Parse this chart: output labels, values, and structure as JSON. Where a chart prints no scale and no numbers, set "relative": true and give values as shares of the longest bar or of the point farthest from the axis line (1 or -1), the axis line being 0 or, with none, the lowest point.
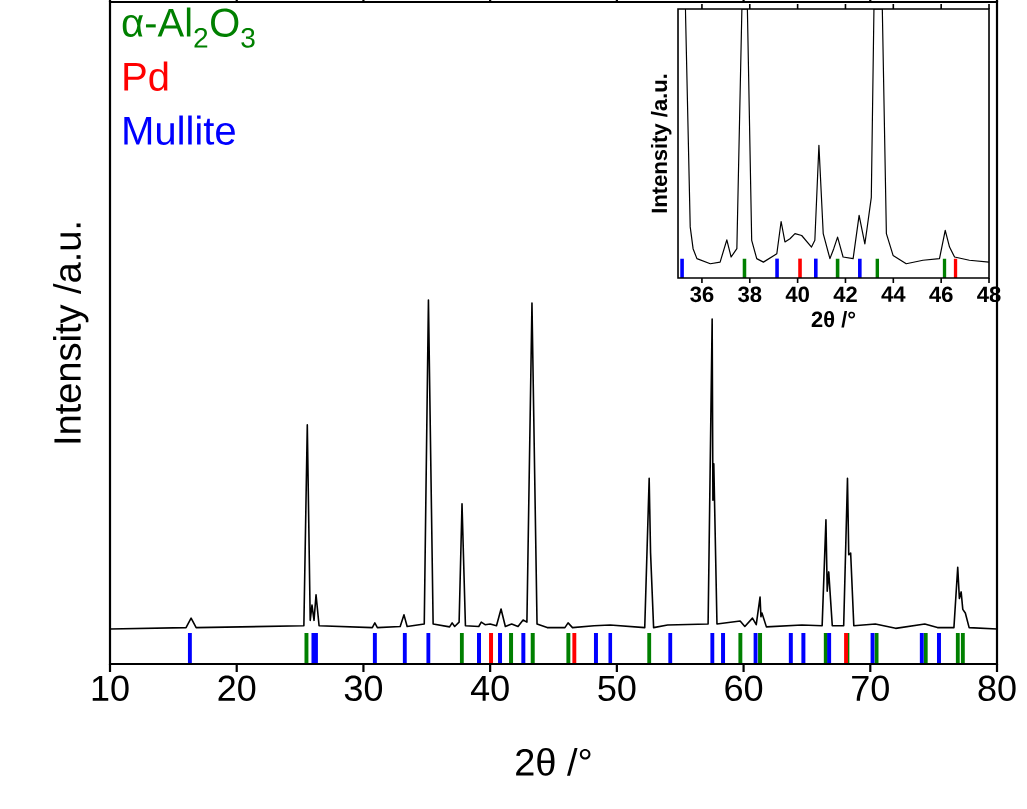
{
  "chart_data": [
    {
      "type": "line",
      "relative": true,
      "xlim": [
        10,
        80
      ],
      "xticks": [
        10,
        20,
        30,
        40,
        50,
        60,
        70,
        80
      ],
      "xlabel": "2θ /°",
      "ylabel": "Intensity /a.u.",
      "legend": "top left",
      "series": [
        {
          "color": "#000000",
          "x": [
            10,
            16.0,
            16.4,
            16.8,
            25.3,
            25.57,
            25.8,
            25.94,
            26.1,
            26.26,
            26.5,
            30.7,
            30.9,
            31.1,
            32.9,
            33.2,
            33.45,
            34.8,
            35.13,
            35.5,
            36.8,
            37.0,
            37.2,
            37.55,
            37.78,
            38.05,
            39.1,
            39.3,
            39.6,
            40.0,
            40.5,
            40.86,
            41.2,
            41.7,
            42.2,
            42.6,
            42.9,
            43.3,
            43.7,
            44.5,
            45.9,
            46.15,
            46.5,
            48.2,
            49.47,
            52.2,
            52.55,
            52.66,
            52.9,
            54.0,
            57.2,
            57.52,
            57.58,
            57.65,
            57.9,
            59.73,
            60.1,
            60.7,
            61.0,
            61.3,
            61.37,
            61.45,
            61.8,
            64.6,
            66.2,
            66.5,
            66.6,
            66.72,
            67.0,
            67.9,
            68.2,
            68.3,
            68.45,
            68.7,
            70.4,
            72,
            74.3,
            75.3,
            76.6,
            76.9,
            77.03,
            77.17,
            77.3,
            77.5,
            77.8,
            80
          ],
          "values": [
            0.096,
            0.1,
            0.126,
            0.1,
            0.105,
            0.657,
            0.12,
            0.162,
            0.12,
            0.19,
            0.105,
            0.1,
            0.113,
            0.1,
            0.103,
            0.135,
            0.103,
            0.11,
            1.0,
            0.11,
            0.102,
            0.113,
            0.103,
            0.115,
            0.44,
            0.105,
            0.103,
            0.115,
            0.108,
            0.11,
            0.105,
            0.151,
            0.103,
            0.11,
            0.103,
            0.121,
            0.115,
            0.992,
            0.11,
            0.1,
            0.1,
            0.113,
            0.1,
            0.105,
            0.107,
            0.1,
            0.51,
            0.305,
            0.1,
            0.107,
            0.11,
            0.948,
            0.45,
            0.55,
            0.11,
            0.118,
            0.103,
            0.126,
            0.108,
            0.184,
            0.13,
            0.14,
            0.102,
            0.107,
            0.105,
            0.396,
            0.2,
            0.253,
            0.105,
            0.105,
            0.51,
            0.3,
            0.305,
            0.105,
            0.11,
            0.098,
            0.11,
            0.1,
            0.1,
            0.266,
            0.18,
            0.198,
            0.15,
            0.14,
            0.1,
            0.096
          ]
        },
        {
          "type": "bar",
          "name": "α-Al$_{2}$O$_{3}$",
          "color": "#008000",
          "x": [
            25.5,
            37.76,
            41.65,
            43.36,
            46.17,
            52.56,
            59.75,
            61.3,
            66.49,
            68.19,
            70.49,
            74.37,
            76.9,
            77.3
          ],
          "values": [
            0.085,
            0.085,
            0.085,
            0.085,
            0.085,
            0.085,
            0.085,
            0.085,
            0.085,
            0.085,
            0.085,
            0.085,
            0.085,
            0.085
          ]
        },
        {
          "type": "bar",
          "name": "Pd",
          "color": "#ff0000",
          "x": [
            40.07,
            46.64,
            68.09
          ],
          "values": [
            0.085,
            0.085,
            0.085
          ]
        },
        {
          "type": "bar",
          "name": "Mullite",
          "color": "#0000ff",
          "x": [
            16.3,
            26.05,
            26.25,
            30.9,
            33.26,
            35.13,
            39.12,
            40.78,
            42.62,
            48.35,
            49.48,
            54.22,
            57.54,
            58.38,
            60.95,
            63.73,
            64.72,
            66.75,
            70.17,
            74.06,
            75.42
          ],
          "values": [
            0.085,
            0.085,
            0.085,
            0.085,
            0.085,
            0.085,
            0.085,
            0.085,
            0.085,
            0.085,
            0.085,
            0.085,
            0.085,
            0.085,
            0.085,
            0.085,
            0.085,
            0.085,
            0.085,
            0.085,
            0.085
          ]
        }
      ]
    },
    {
      "type": "line",
      "relative": true,
      "xlim": [
        35,
        48
      ],
      "xticks": [
        36,
        38,
        40,
        42,
        44,
        46,
        48
      ],
      "xlabel": "2θ /°",
      "ylabel": "Intensity /a.u.",
      "series": [
        {
          "color": "#000000",
          "x": [
            35.31,
            35.51,
            35.63,
            35.79,
            36.35,
            36.76,
            37.04,
            37.22,
            37.46,
            37.67,
            37.9,
            38.08,
            38.29,
            38.57,
            39.13,
            39.31,
            39.47,
            39.68,
            39.89,
            40.17,
            40.58,
            40.72,
            40.89,
            41.07,
            41.35,
            41.51,
            41.67,
            41.9,
            42.32,
            42.57,
            42.81,
            42.9,
            43.08,
            43.19,
            43.54,
            43.71,
            43.99,
            44.54,
            45.24,
            45.93,
            46.17,
            46.35,
            46.56,
            47.18,
            48
          ],
          "values": [
            1,
            0.19,
            0.109,
            0.072,
            0.053,
            0.059,
            0.142,
            0.078,
            0.109,
            1,
            1,
            0.14,
            0.072,
            0.059,
            0.09,
            0.21,
            0.134,
            0.146,
            0.165,
            0.158,
            0.115,
            0.14,
            0.493,
            0.165,
            0.072,
            0.109,
            0.152,
            0.078,
            0.072,
            0.233,
            0.127,
            0.183,
            0.3,
            1,
            1,
            0.165,
            0.084,
            0.053,
            0.066,
            0.072,
            0.177,
            0.115,
            0.078,
            0.066,
            0.059
          ]
        },
        {
          "type": "bar",
          "color": "#008000",
          "x": [
            37.78,
            41.67,
            43.33,
            46.14
          ],
          "values": [
            0.072,
            0.072,
            0.072,
            0.072
          ]
        },
        {
          "type": "bar",
          "color": "#ff0000",
          "x": [
            40.1,
            46.6
          ],
          "values": [
            0.072,
            0.072
          ]
        },
        {
          "type": "bar",
          "color": "#0000ff",
          "x": [
            35.17,
            39.14,
            40.76,
            42.6
          ],
          "values": [
            0.072,
            0.072,
            0.072,
            0.072
          ]
        }
      ]
    }
  ]
}
